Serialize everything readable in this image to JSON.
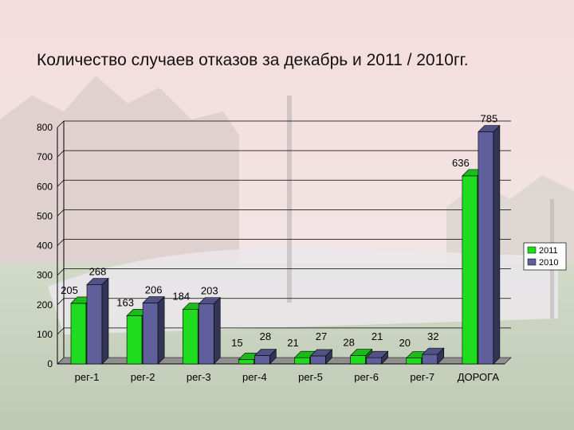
{
  "title": "Количество случаев отказов  за декабрь и 2011 / 2010гг.",
  "colors": {
    "series_2011": "#1fdc1f",
    "series_2010": "#5f5f9c"
  },
  "chart_data": {
    "type": "bar",
    "categories": [
      "рег-1",
      "рег-2",
      "рег-3",
      "рег-4",
      "рег-5",
      "рег-6",
      "рег-7",
      "ДОРОГА"
    ],
    "series": [
      {
        "name": "2011",
        "values": [
          205,
          163,
          184,
          15,
          21,
          28,
          20,
          636
        ]
      },
      {
        "name": "2010",
        "values": [
          268,
          206,
          203,
          28,
          27,
          21,
          32,
          785
        ]
      }
    ],
    "ylim": [
      0,
      800
    ],
    "yticks": [
      "0",
      "100",
      "200",
      "300",
      "400",
      "500",
      "600",
      "700",
      "800"
    ],
    "grid": true,
    "legend_position": "right",
    "chart_style": "3d-bars"
  }
}
